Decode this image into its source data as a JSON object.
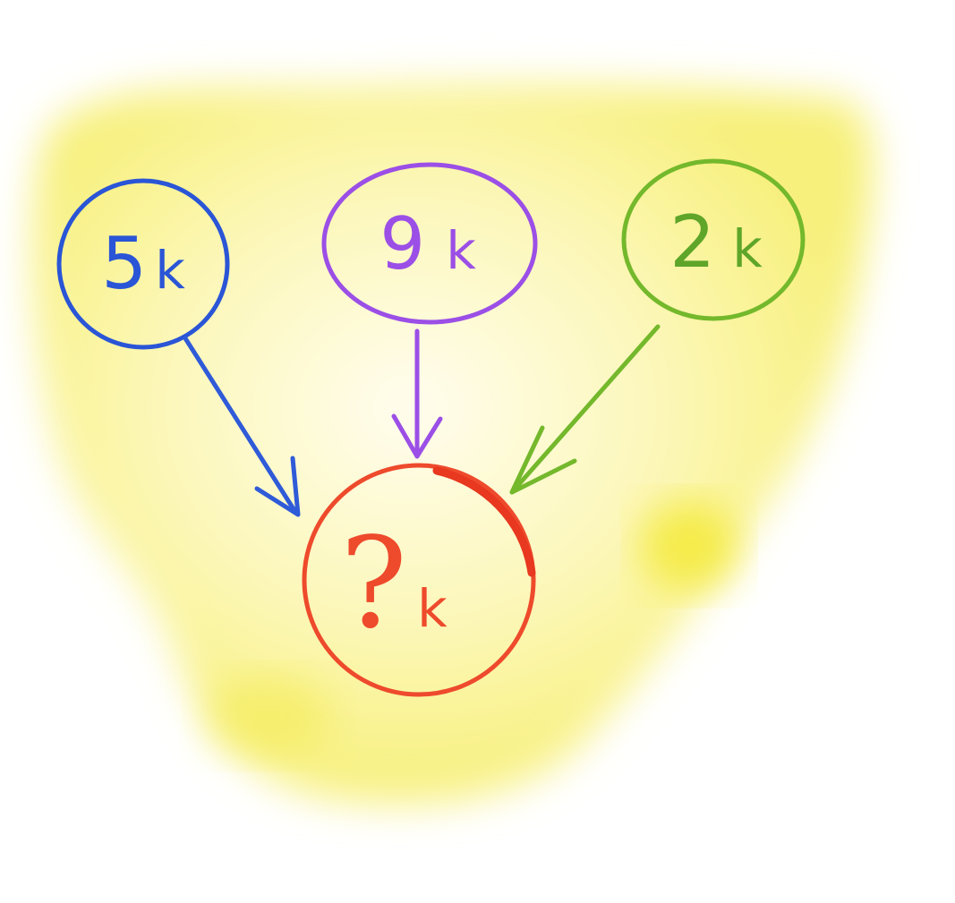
{
  "colors": {
    "background_wash": "#f7f07a",
    "node_5k": "#2a55d6",
    "node_9k": "#9b4fe6",
    "node_2k": "#74b82c",
    "node_result": "#ee4a2c"
  },
  "nodes": {
    "source_5k": {
      "number": "5",
      "unit": "k"
    },
    "source_9k": {
      "number": "9",
      "unit": "k"
    },
    "source_2k": {
      "number": "2",
      "unit": "k"
    },
    "result": {
      "number": "?",
      "unit": "k"
    }
  },
  "edges": [
    {
      "from": "source_5k",
      "to": "result"
    },
    {
      "from": "source_9k",
      "to": "result"
    },
    {
      "from": "source_2k",
      "to": "result"
    }
  ]
}
